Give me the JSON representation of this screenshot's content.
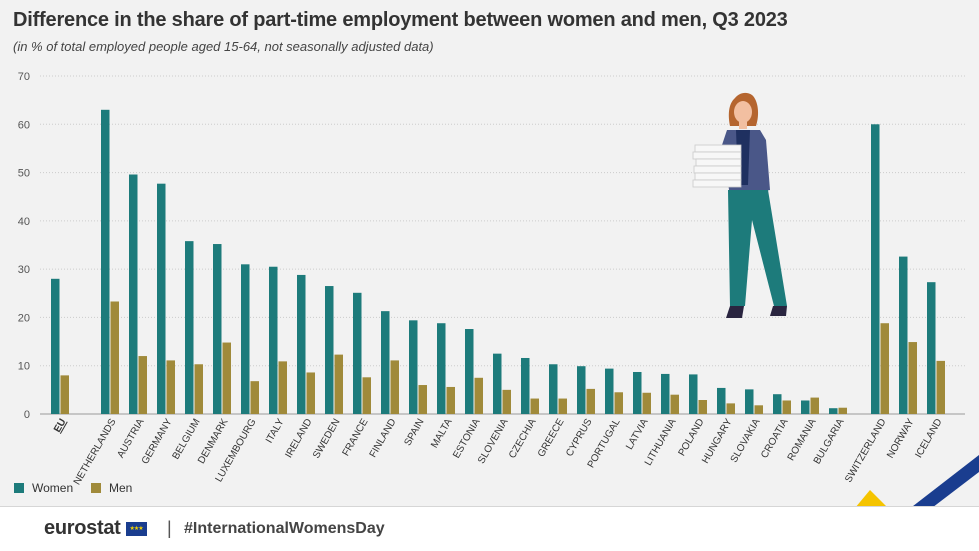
{
  "title": "Difference in the share of part-time employment between women and men, Q3 2023",
  "subtitle": "(in % of total employed people aged 15-64, not seasonally adjusted data)",
  "footer": {
    "brand": "eurostat",
    "separator": "|",
    "hashtag": "#InternationalWomensDay"
  },
  "colors": {
    "women": "#1d7b7b",
    "men": "#a08a3a",
    "background": "#f2f2f2",
    "grid": "#cccccc",
    "accent_yellow": "#f5c400",
    "accent_blue": "#1a3d8f"
  },
  "chart_data": {
    "type": "bar",
    "ylim": [
      0,
      70
    ],
    "yticks": [
      0,
      10,
      20,
      30,
      40,
      50,
      60,
      70
    ],
    "grid": true,
    "legend_position": "bottom-left",
    "categories": [
      "EU",
      "NETHERLANDS",
      "AUSTRIA",
      "GERMANY",
      "BELGIUM",
      "DENMARK",
      "LUXEMBOURG",
      "ITALY",
      "IRELAND",
      "SWEDEN",
      "FRANCE",
      "FINLAND",
      "SPAIN",
      "MALTA",
      "ESTONIA",
      "SLOVENIA",
      "CZECHIA",
      "GREECE",
      "CYPRUS",
      "PORTUGAL",
      "LATVIA",
      "LITHUANIA",
      "POLAND",
      "HUNGARY",
      "SLOVAKIA",
      "CROATIA",
      "ROMANIA",
      "BULGARIA",
      "SWITZERLAND",
      "NORWAY",
      "ICELAND"
    ],
    "series": [
      {
        "name": "Women",
        "values": [
          28.0,
          63.0,
          49.6,
          47.7,
          35.8,
          35.2,
          31.0,
          30.5,
          28.8,
          26.5,
          25.1,
          21.3,
          19.4,
          18.8,
          17.6,
          12.5,
          11.6,
          10.3,
          9.9,
          9.4,
          8.7,
          8.3,
          8.2,
          5.4,
          5.1,
          4.1,
          2.8,
          1.2,
          60.0,
          32.6,
          27.3
        ]
      },
      {
        "name": "Men",
        "values": [
          8.0,
          23.3,
          12.0,
          11.1,
          10.3,
          14.8,
          6.8,
          10.9,
          8.6,
          12.3,
          7.6,
          11.1,
          6.0,
          5.6,
          7.5,
          5.0,
          3.2,
          3.2,
          5.2,
          4.5,
          4.4,
          4.0,
          2.9,
          2.2,
          1.8,
          2.8,
          3.4,
          1.3,
          18.8,
          14.9,
          11.0
        ]
      }
    ]
  }
}
